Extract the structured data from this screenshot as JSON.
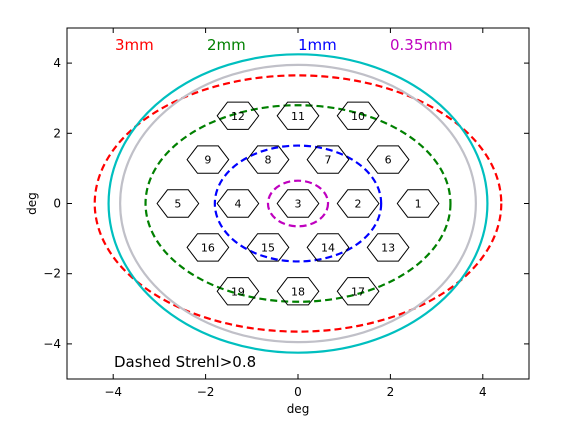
{
  "chart_data": {
    "type": "scatter",
    "title": "",
    "xlabel": "deg",
    "ylabel": "deg",
    "xlim": [
      -5,
      5
    ],
    "ylim": [
      -5,
      5
    ],
    "xticks": [
      -4,
      -2,
      0,
      2,
      4
    ],
    "yticks": [
      -4,
      -2,
      0,
      2,
      4
    ],
    "xtick_labels": [
      "−4",
      "−2",
      "0",
      "2",
      "4"
    ],
    "ytick_labels": [
      "−4",
      "−2",
      "0",
      "2",
      "4"
    ],
    "grid": false,
    "legend": [
      {
        "label": "3mm",
        "color": "#ff0000"
      },
      {
        "label": "2mm",
        "color": "#008000"
      },
      {
        "label": "1mm",
        "color": "#0000ff"
      },
      {
        "label": "0.35mm",
        "color": "#bf00bf"
      }
    ],
    "annotation": "Dashed Strehl>0.8",
    "hexagon_radius_deg": 0.45,
    "hexagons": [
      {
        "id": "1",
        "x": 2.6,
        "y": 0.0
      },
      {
        "id": "2",
        "x": 1.3,
        "y": 0.0
      },
      {
        "id": "3",
        "x": 0.0,
        "y": 0.0
      },
      {
        "id": "4",
        "x": -1.3,
        "y": 0.0
      },
      {
        "id": "5",
        "x": -2.6,
        "y": 0.0
      },
      {
        "id": "6",
        "x": 1.95,
        "y": 1.25
      },
      {
        "id": "7",
        "x": 0.65,
        "y": 1.25
      },
      {
        "id": "8",
        "x": -0.65,
        "y": 1.25
      },
      {
        "id": "9",
        "x": -1.95,
        "y": 1.25
      },
      {
        "id": "10",
        "x": 1.3,
        "y": 2.5
      },
      {
        "id": "11",
        "x": 0.0,
        "y": 2.5
      },
      {
        "id": "12",
        "x": -1.3,
        "y": 2.5
      },
      {
        "id": "13",
        "x": 1.95,
        "y": -1.25
      },
      {
        "id": "14",
        "x": 0.65,
        "y": -1.25
      },
      {
        "id": "15",
        "x": -0.65,
        "y": -1.25
      },
      {
        "id": "16",
        "x": -1.95,
        "y": -1.25
      },
      {
        "id": "17",
        "x": 1.3,
        "y": -2.5
      },
      {
        "id": "18",
        "x": 0.0,
        "y": -2.5
      },
      {
        "id": "19",
        "x": -1.3,
        "y": -2.5
      }
    ],
    "ellipses": [
      {
        "name": "3mm",
        "color": "#ff0000",
        "style": "dashed",
        "cx": 0,
        "cy": 0,
        "rx": 4.4,
        "ry": 3.65
      },
      {
        "name": "2mm",
        "color": "#008000",
        "style": "dashed",
        "cx": 0,
        "cy": 0,
        "rx": 3.3,
        "ry": 2.8
      },
      {
        "name": "1mm",
        "color": "#0000ff",
        "style": "dashed",
        "cx": 0,
        "cy": 0,
        "rx": 1.8,
        "ry": 1.65
      },
      {
        "name": "0.35mm",
        "color": "#bf00bf",
        "style": "dashed",
        "cx": 0,
        "cy": 0,
        "rx": 0.65,
        "ry": 0.65
      },
      {
        "name": "outer-cyan",
        "color": "#00bfbf",
        "style": "solid",
        "cx": 0,
        "cy": 0,
        "rx": 4.1,
        "ry": 4.25
      },
      {
        "name": "inner-gray",
        "color": "#c0c0c8",
        "style": "solid",
        "cx": 0,
        "cy": 0,
        "rx": 3.85,
        "ry": 3.95
      }
    ]
  }
}
